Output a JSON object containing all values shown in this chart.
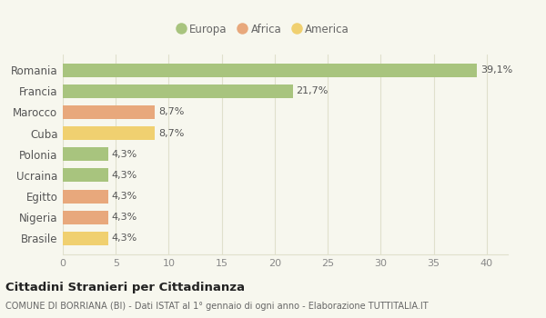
{
  "categories": [
    "Romania",
    "Francia",
    "Marocco",
    "Cuba",
    "Polonia",
    "Ucraina",
    "Egitto",
    "Nigeria",
    "Brasile"
  ],
  "values": [
    39.1,
    21.7,
    8.7,
    8.7,
    4.3,
    4.3,
    4.3,
    4.3,
    4.3
  ],
  "labels": [
    "39,1%",
    "21,7%",
    "8,7%",
    "8,7%",
    "4,3%",
    "4,3%",
    "4,3%",
    "4,3%",
    "4,3%"
  ],
  "colors": [
    "#a8c47e",
    "#a8c47e",
    "#e8a87c",
    "#f0d070",
    "#a8c47e",
    "#a8c47e",
    "#e8a87c",
    "#e8a87c",
    "#f0d070"
  ],
  "legend": [
    {
      "label": "Europa",
      "color": "#a8c47e"
    },
    {
      "label": "Africa",
      "color": "#e8a87c"
    },
    {
      "label": "America",
      "color": "#f0d070"
    }
  ],
  "xlim": [
    0,
    42
  ],
  "xticks": [
    0,
    5,
    10,
    15,
    20,
    25,
    30,
    35,
    40
  ],
  "title": "Cittadini Stranieri per Cittadinanza",
  "subtitle": "COMUNE DI BORRIANA (BI) - Dati ISTAT al 1° gennaio di ogni anno - Elaborazione TUTTITALIA.IT",
  "background_color": "#f7f7ee",
  "grid_color": "#e0e0cc",
  "bar_height": 0.65
}
